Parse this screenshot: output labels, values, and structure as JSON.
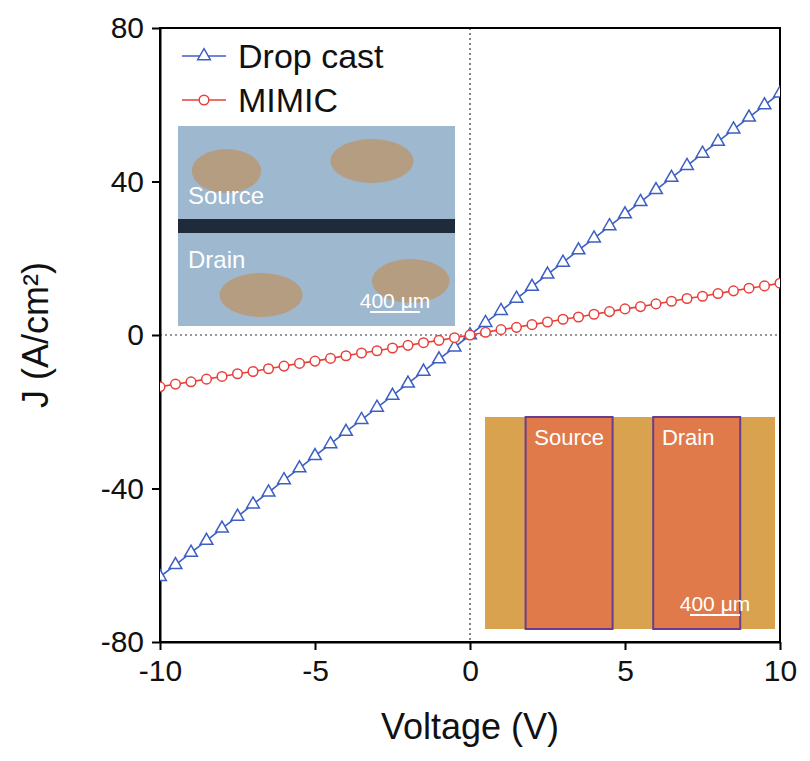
{
  "chart_data": {
    "type": "line",
    "xlabel": "Voltage (V)",
    "ylabel": "J (A/cm²)",
    "x": [
      -10,
      -9.5,
      -9,
      -8.5,
      -8,
      -7.5,
      -7,
      -6.5,
      -6,
      -5.5,
      -5,
      -4.5,
      -4,
      -3.5,
      -3,
      -2.5,
      -2,
      -1.5,
      -1,
      -0.5,
      0,
      0.5,
      1,
      1.5,
      2,
      2.5,
      3,
      3.5,
      4,
      4.5,
      5,
      5.5,
      6,
      6.5,
      7,
      7.5,
      8,
      8.5,
      9,
      9.5,
      10
    ],
    "series": [
      {
        "name": "Drop cast",
        "color": "#3d5fc4",
        "marker": "triangle",
        "line_style": "solid",
        "values": [
          -63,
          -59.9,
          -56.7,
          -53.6,
          -50.4,
          -47.3,
          -44.1,
          -41.0,
          -37.8,
          -34.7,
          -31.5,
          -28.4,
          -25.2,
          -22.1,
          -18.9,
          -15.8,
          -12.6,
          -9.5,
          -6.3,
          -3.2,
          0,
          3.2,
          6.3,
          9.5,
          12.6,
          15.8,
          18.9,
          22.1,
          25.2,
          28.4,
          31.5,
          34.7,
          37.8,
          41.0,
          44.1,
          47.3,
          50.4,
          53.6,
          56.7,
          59.9,
          63
        ],
        "inset": {
          "labels": [
            "Source",
            "Drain"
          ],
          "scale_bar": "400 μm"
        }
      },
      {
        "name": "MIMIC",
        "color": "#e8403a",
        "marker": "circle",
        "line_style": "solid",
        "values": [
          -13.5,
          -12.8,
          -12.2,
          -11.5,
          -10.8,
          -10.1,
          -9.5,
          -8.8,
          -8.1,
          -7.4,
          -6.8,
          -6.1,
          -5.4,
          -4.7,
          -4.1,
          -3.4,
          -2.7,
          -2.0,
          -1.4,
          -0.7,
          0,
          0.7,
          1.4,
          2.0,
          2.7,
          3.4,
          4.1,
          4.7,
          5.4,
          6.1,
          6.8,
          7.4,
          8.1,
          8.8,
          9.5,
          10.1,
          10.8,
          11.5,
          12.2,
          12.8,
          13.5
        ],
        "inset": {
          "labels": [
            "Source",
            "Drain"
          ],
          "scale_bar": "400 μm"
        }
      }
    ],
    "xlim": [
      -10,
      10
    ],
    "ylim": [
      -80,
      80
    ],
    "xticks": [
      -10,
      -5,
      0,
      5,
      10
    ],
    "yticks": [
      -80,
      -40,
      0,
      40,
      80
    ],
    "hlines": [
      0
    ],
    "vlines": [
      0
    ],
    "legend": "upper left",
    "grid": false
  }
}
